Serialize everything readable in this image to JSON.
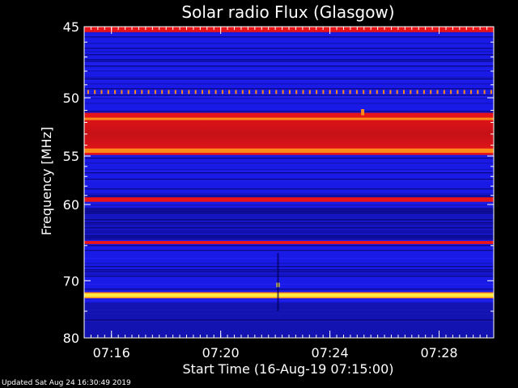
{
  "chart_data": {
    "type": "heatmap",
    "title": "Solar radio Flux (Glasgow)",
    "xlabel": "Start Time (16-Aug-19 07:15:00)",
    "ylabel": "Frequency [MHz]",
    "x_ticks": [
      "07:16",
      "07:20",
      "07:24",
      "07:28"
    ],
    "x_tick_minutes": [
      1,
      5,
      9,
      13
    ],
    "xlim_minutes": [
      0,
      15
    ],
    "y_ticks": [
      45,
      50,
      55,
      60,
      70,
      80
    ],
    "ylim": [
      45,
      80
    ],
    "y_scale": "reciprocal",
    "x_minor_tick_step_minutes": 0.25,
    "y_minor_ticks": [
      46,
      47,
      48,
      49,
      51,
      52,
      53,
      54,
      56,
      57,
      58,
      59,
      65,
      75
    ],
    "background_level": "blue",
    "bands": [
      {
        "freq_from": 45.0,
        "freq_to": 45.35,
        "level": "red"
      },
      {
        "freq_from": 49.4,
        "freq_to": 49.7,
        "level": "dotted-orange"
      },
      {
        "freq_from": 51.2,
        "freq_to": 54.9,
        "level": "red"
      },
      {
        "freq_from": 51.6,
        "freq_to": 51.8,
        "level": "orange"
      },
      {
        "freq_from": 54.3,
        "freq_to": 54.7,
        "level": "orange"
      },
      {
        "freq_from": 59.2,
        "freq_to": 59.7,
        "level": "red"
      },
      {
        "freq_from": 64.4,
        "freq_to": 64.8,
        "level": "red"
      },
      {
        "freq_from": 72.0,
        "freq_to": 72.6,
        "level": "yellow"
      }
    ],
    "bursts": [
      {
        "time_minutes": 7.1,
        "freq_from": 70.3,
        "freq_to": 71.0,
        "level": "yellow"
      },
      {
        "time_minutes": 10.2,
        "freq_from": 50.9,
        "freq_to": 51.4,
        "level": "orange"
      }
    ],
    "colors": {
      "background": "#000000",
      "axis": "#ffffff",
      "blue": "#1a1ae6",
      "dark_blue": "#0a0a70",
      "red": "#e8141a",
      "orange": "#ff8c1a",
      "yellow": "#ffe840"
    }
  },
  "footer": {
    "updated": "Updated Sat Aug 24 16:30:49 2019"
  }
}
